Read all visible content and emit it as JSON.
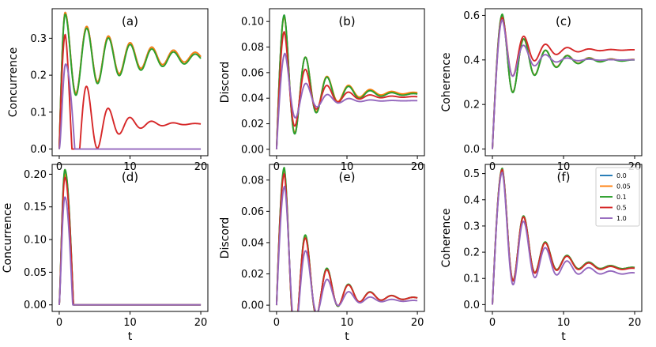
{
  "figure": {
    "x_axis_label": "t",
    "legend_entries": [
      "0.0",
      "0.05",
      "0.1",
      "0.5",
      "1.0"
    ],
    "series_colors": [
      "#1f77b4",
      "#ff7f0e",
      "#2ca02c",
      "#d62728",
      "#9467bd"
    ]
  },
  "chart_data": [
    {
      "type": "line",
      "panel": "(a)",
      "xlabel": "",
      "ylabel": "Concurrence",
      "xlim": [
        -1,
        21
      ],
      "ylim": [
        -0.018,
        0.38
      ],
      "xticks": [
        0,
        10,
        20
      ],
      "yticks": [
        "0.0",
        "0.1",
        "0.2",
        "0.3"
      ],
      "series": [
        {
          "name": "0.0",
          "model": "conc_osc",
          "params": {
            "c": 0.25,
            "a": 0.13,
            "tau": 8,
            "w": 2.05,
            "amp": 0.37
          }
        },
        {
          "name": "0.05",
          "model": "conc_osc",
          "params": {
            "c": 0.25,
            "a": 0.13,
            "tau": 8,
            "w": 2.05,
            "amp": 0.37
          }
        },
        {
          "name": "0.1",
          "model": "conc_osc",
          "params": {
            "c": 0.245,
            "a": 0.13,
            "tau": 8,
            "w": 2.05,
            "amp": 0.365
          }
        },
        {
          "name": "0.5",
          "model": "conc_osc",
          "params": {
            "c": 0.068,
            "a": 0.13,
            "tau": 3.5,
            "w": 2.05,
            "amp": 0.31
          }
        },
        {
          "name": "1.0",
          "model": "death",
          "params": {
            "amp": 0.23,
            "t0": 0.9,
            "t1": 2.2,
            "p": 1.6
          }
        }
      ]
    },
    {
      "type": "line",
      "panel": "(b)",
      "xlabel": "",
      "ylabel": "Discord",
      "xlim": [
        -1,
        21
      ],
      "ylim": [
        -0.005,
        0.11
      ],
      "xticks": [
        0,
        10,
        20
      ],
      "yticks": [
        "0.00",
        "0.02",
        "0.04",
        "0.06",
        "0.08",
        "0.10"
      ],
      "series": [
        {
          "name": "0.0",
          "model": "damped",
          "params": {
            "amp": 0.105,
            "tp": 1.1,
            "c": 0.043,
            "a": 0.045,
            "tau": 4,
            "w": 2.05,
            "s": 0
          }
        },
        {
          "name": "0.05",
          "model": "damped",
          "params": {
            "amp": 0.104,
            "tp": 1.1,
            "c": 0.044,
            "a": 0.045,
            "tau": 4,
            "w": 2.05,
            "s": 0
          }
        },
        {
          "name": "0.1",
          "model": "damped",
          "params": {
            "amp": 0.105,
            "tp": 1.1,
            "c": 0.043,
            "a": 0.045,
            "tau": 4,
            "w": 2.05,
            "s": 0
          }
        },
        {
          "name": "0.5",
          "model": "damped",
          "params": {
            "amp": 0.092,
            "tp": 1.1,
            "c": 0.041,
            "a": 0.035,
            "tau": 3.5,
            "w": 2.05,
            "s": 0
          }
        },
        {
          "name": "1.0",
          "model": "damped",
          "params": {
            "amp": 0.075,
            "tp": 1.2,
            "c": 0.038,
            "a": 0.022,
            "tau": 3,
            "w": 2.05,
            "s": 0
          }
        }
      ]
    },
    {
      "type": "line",
      "panel": "(c)",
      "xlabel": "",
      "ylabel": "Coherence",
      "xlim": [
        -1,
        21
      ],
      "ylim": [
        -0.03,
        0.63
      ],
      "xticks": [
        0,
        10,
        20
      ],
      "yticks": [
        "0.0",
        "0.2",
        "0.4",
        "0.6"
      ],
      "series": [
        {
          "name": "0.0",
          "model": "damped",
          "params": {
            "amp": 0.6,
            "tp": 1.4,
            "c": 0.4,
            "a": 0.21,
            "tau": 4,
            "w": 2.05,
            "s": 0
          }
        },
        {
          "name": "0.05",
          "model": "damped",
          "params": {
            "amp": 0.6,
            "tp": 1.4,
            "c": 0.4,
            "a": 0.21,
            "tau": 4,
            "w": 2.05,
            "s": 0
          }
        },
        {
          "name": "0.1",
          "model": "damped",
          "params": {
            "amp": 0.605,
            "tp": 1.4,
            "c": 0.398,
            "a": 0.21,
            "tau": 4,
            "w": 2.05,
            "s": 0
          }
        },
        {
          "name": "0.5",
          "model": "damped",
          "params": {
            "amp": 0.59,
            "tp": 1.4,
            "c": 0.445,
            "a": 0.18,
            "tau": 3.5,
            "w": 2.05,
            "s": 0
          }
        },
        {
          "name": "1.0",
          "model": "damped",
          "params": {
            "amp": 0.58,
            "tp": 1.4,
            "c": 0.4,
            "a": 0.12,
            "tau": 3,
            "w": 2.05,
            "s": 0
          }
        }
      ]
    },
    {
      "type": "line",
      "panel": "(d)",
      "xlabel": "t",
      "ylabel": "Concurrence",
      "xlim": [
        -1,
        21
      ],
      "ylim": [
        -0.01,
        0.215
      ],
      "xticks": [
        0,
        10,
        20
      ],
      "yticks": [
        "0.00",
        "0.05",
        "0.10",
        "0.15",
        "0.20"
      ],
      "series": [
        {
          "name": "0.0",
          "model": "death",
          "params": {
            "amp": 0.205,
            "t0": 0.8,
            "t1": 2.0,
            "p": 1.3
          }
        },
        {
          "name": "0.05",
          "model": "death",
          "params": {
            "amp": 0.2,
            "t0": 0.8,
            "t1": 2.0,
            "p": 1.3
          }
        },
        {
          "name": "0.1",
          "model": "death",
          "params": {
            "amp": 0.207,
            "t0": 0.8,
            "t1": 2.0,
            "p": 1.3
          }
        },
        {
          "name": "0.5",
          "model": "death",
          "params": {
            "amp": 0.195,
            "t0": 0.8,
            "t1": 2.0,
            "p": 1.3
          }
        },
        {
          "name": "1.0",
          "model": "death",
          "params": {
            "amp": 0.165,
            "t0": 0.8,
            "t1": 1.9,
            "p": 1.3
          }
        }
      ]
    },
    {
      "type": "line",
      "panel": "(e)",
      "xlabel": "t",
      "ylabel": "Discord",
      "xlim": [
        -1,
        21
      ],
      "ylim": [
        -0.004,
        0.09
      ],
      "xticks": [
        0,
        10,
        20
      ],
      "yticks": [
        "0.00",
        "0.02",
        "0.04",
        "0.06",
        "0.08"
      ],
      "series": [
        {
          "name": "0.0",
          "model": "damped",
          "params": {
            "amp": 0.087,
            "tp": 1.1,
            "c": 0.004,
            "a": 0.04,
            "tau": 4,
            "w": 2.05,
            "s": 0.0045
          }
        },
        {
          "name": "0.05",
          "model": "damped",
          "params": {
            "amp": 0.086,
            "tp": 1.1,
            "c": 0.004,
            "a": 0.04,
            "tau": 4,
            "w": 2.05,
            "s": 0.0045
          }
        },
        {
          "name": "0.1",
          "model": "damped",
          "params": {
            "amp": 0.088,
            "tp": 1.1,
            "c": 0.004,
            "a": 0.04,
            "tau": 4,
            "w": 2.05,
            "s": 0.0045
          }
        },
        {
          "name": "0.5",
          "model": "damped",
          "params": {
            "amp": 0.084,
            "tp": 1.1,
            "c": 0.004,
            "a": 0.037,
            "tau": 4,
            "w": 2.05,
            "s": 0.0042
          }
        },
        {
          "name": "1.0",
          "model": "damped",
          "params": {
            "amp": 0.076,
            "tp": 1.15,
            "c": 0.0025,
            "a": 0.033,
            "tau": 3.5,
            "w": 2.05,
            "s": 0.0035
          }
        }
      ]
    },
    {
      "type": "line",
      "panel": "(f)",
      "xlabel": "t",
      "ylabel": "Coherence",
      "xlim": [
        -1,
        21
      ],
      "ylim": [
        -0.026,
        0.535
      ],
      "xticks": [
        0,
        10,
        20
      ],
      "yticks": [
        "0.0",
        "0.1",
        "0.2",
        "0.3",
        "0.4",
        "0.5"
      ],
      "legend": "top-right",
      "series": [
        {
          "name": "0.0",
          "model": "damped",
          "params": {
            "amp": 0.515,
            "tp": 1.4,
            "c": 0.135,
            "a": 0.14,
            "tau": 4,
            "w": 2.05,
            "s": 0.07
          }
        },
        {
          "name": "0.05",
          "model": "damped",
          "params": {
            "amp": 0.515,
            "tp": 1.4,
            "c": 0.135,
            "a": 0.14,
            "tau": 4,
            "w": 2.05,
            "s": 0.07
          }
        },
        {
          "name": "0.1",
          "model": "damped",
          "params": {
            "amp": 0.52,
            "tp": 1.4,
            "c": 0.135,
            "a": 0.145,
            "tau": 4,
            "w": 2.05,
            "s": 0.07
          }
        },
        {
          "name": "0.5",
          "model": "damped",
          "params": {
            "amp": 0.515,
            "tp": 1.4,
            "c": 0.132,
            "a": 0.14,
            "tau": 4,
            "w": 2.05,
            "s": 0.07
          }
        },
        {
          "name": "1.0",
          "model": "damped",
          "params": {
            "amp": 0.505,
            "tp": 1.4,
            "c": 0.115,
            "a": 0.125,
            "tau": 4,
            "w": 2.05,
            "s": 0.06
          }
        }
      ]
    }
  ]
}
